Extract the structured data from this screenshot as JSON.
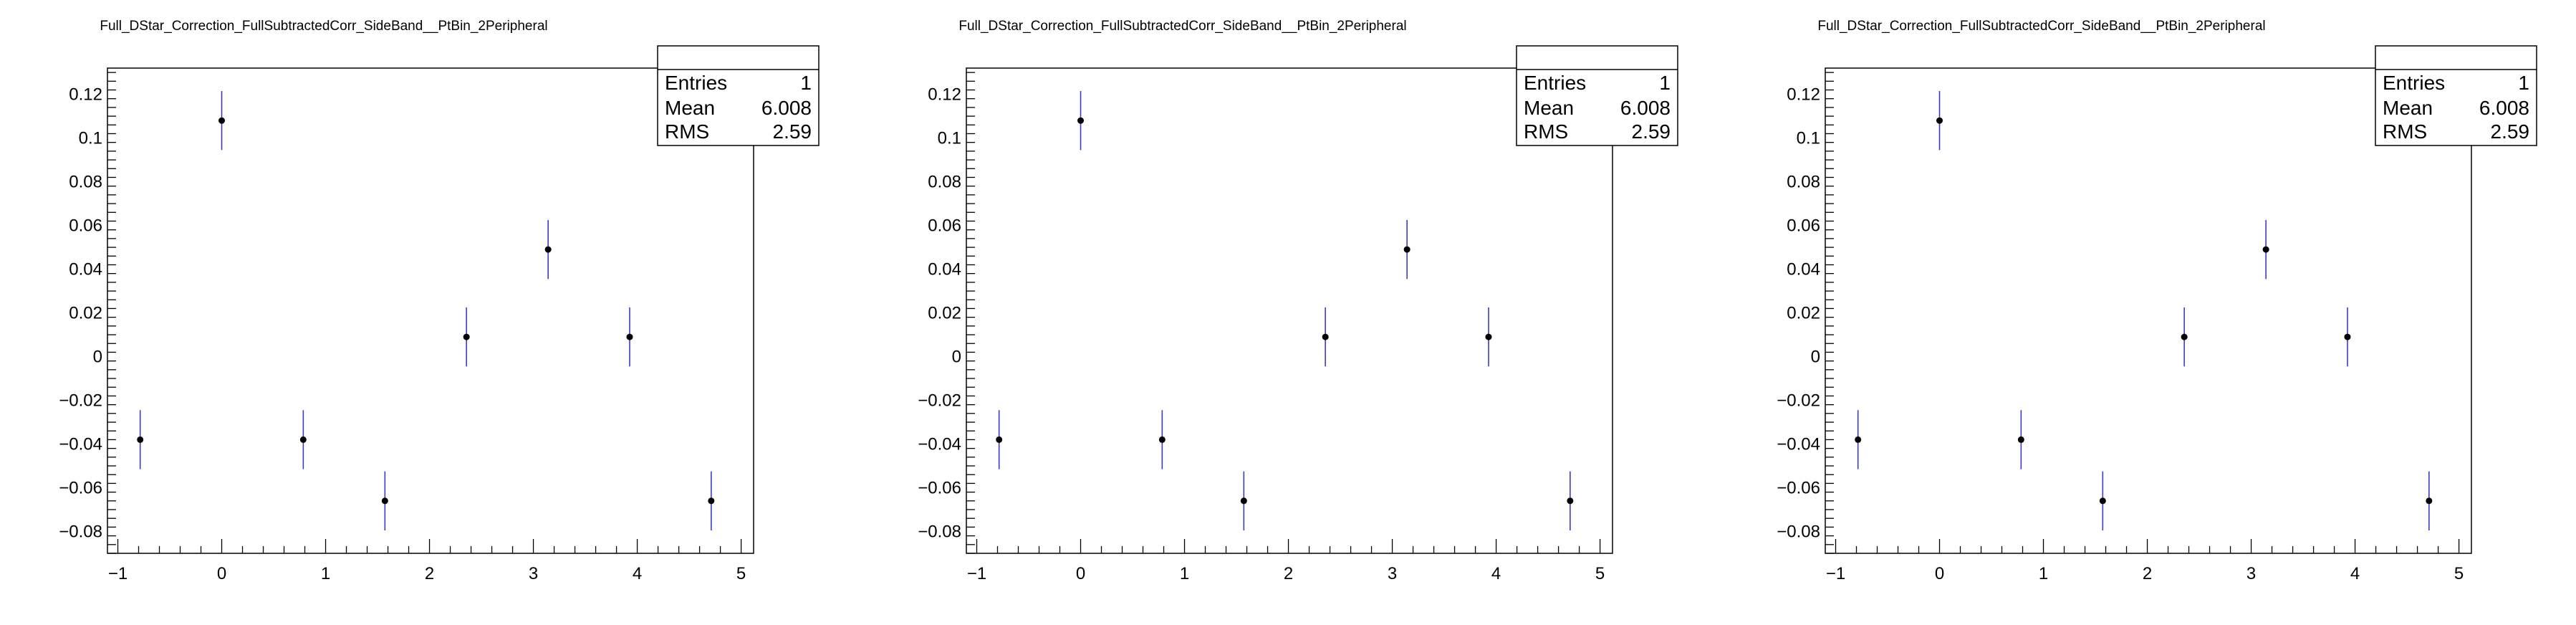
{
  "chart_data": [
    {
      "type": "scatter",
      "title": "Full_DStar_Correction_FullSubtractedCorr_SideBand__PtBin_2Peripheral",
      "xlim": [
        -1.1,
        5.12
      ],
      "ylim": [
        -0.09,
        0.132
      ],
      "x_ticks": [
        -1,
        0,
        1,
        2,
        3,
        4,
        5
      ],
      "x_tick_labels": [
        "−1",
        "0",
        "1",
        "2",
        "3",
        "4",
        "5"
      ],
      "y_ticks": [
        -0.08,
        -0.06,
        -0.04,
        -0.02,
        0,
        0.02,
        0.04,
        0.06,
        0.08,
        0.1,
        0.12
      ],
      "y_tick_labels": [
        "−0.08",
        "−0.06",
        "−0.04",
        "−0.02",
        "0",
        "0.02",
        "0.04",
        "0.06",
        "0.08",
        "0.1",
        "0.12"
      ],
      "grid": false,
      "series": [
        {
          "points": [
            {
              "x": -0.785,
              "y": -0.038,
              "err": 0.0135
            },
            {
              "x": 0.0,
              "y": 0.108,
              "err": 0.0135
            },
            {
              "x": 0.785,
              "y": -0.038,
              "err": 0.0135
            },
            {
              "x": 1.571,
              "y": -0.066,
              "err": 0.0135
            },
            {
              "x": 2.356,
              "y": 0.009,
              "err": 0.0135
            },
            {
              "x": 3.142,
              "y": 0.049,
              "err": 0.0135
            },
            {
              "x": 3.927,
              "y": 0.009,
              "err": 0.0135
            },
            {
              "x": 4.712,
              "y": -0.066,
              "err": 0.0135
            }
          ]
        }
      ],
      "stats": {
        "entries_label": "Entries",
        "entries": "1",
        "mean_label": "Mean",
        "mean": "6.008",
        "rms_label": "RMS",
        "rms": "2.59"
      }
    },
    {
      "type": "scatter",
      "title": "Full_DStar_Correction_FullSubtractedCorr_SideBand__PtBin_2Peripheral",
      "xlim": [
        -1.1,
        5.12
      ],
      "ylim": [
        -0.09,
        0.132
      ],
      "x_ticks": [
        -1,
        0,
        1,
        2,
        3,
        4,
        5
      ],
      "x_tick_labels": [
        "−1",
        "0",
        "1",
        "2",
        "3",
        "4",
        "5"
      ],
      "y_ticks": [
        -0.08,
        -0.06,
        -0.04,
        -0.02,
        0,
        0.02,
        0.04,
        0.06,
        0.08,
        0.1,
        0.12
      ],
      "y_tick_labels": [
        "−0.08",
        "−0.06",
        "−0.04",
        "−0.02",
        "0",
        "0.02",
        "0.04",
        "0.06",
        "0.08",
        "0.1",
        "0.12"
      ],
      "grid": false,
      "series": [
        {
          "points": [
            {
              "x": -0.785,
              "y": -0.038,
              "err": 0.0135
            },
            {
              "x": 0.0,
              "y": 0.108,
              "err": 0.0135
            },
            {
              "x": 0.785,
              "y": -0.038,
              "err": 0.0135
            },
            {
              "x": 1.571,
              "y": -0.066,
              "err": 0.0135
            },
            {
              "x": 2.356,
              "y": 0.009,
              "err": 0.0135
            },
            {
              "x": 3.142,
              "y": 0.049,
              "err": 0.0135
            },
            {
              "x": 3.927,
              "y": 0.009,
              "err": 0.0135
            },
            {
              "x": 4.712,
              "y": -0.066,
              "err": 0.0135
            }
          ]
        }
      ],
      "stats": {
        "entries_label": "Entries",
        "entries": "1",
        "mean_label": "Mean",
        "mean": "6.008",
        "rms_label": "RMS",
        "rms": "2.59"
      }
    },
    {
      "type": "scatter",
      "title": "Full_DStar_Correction_FullSubtractedCorr_SideBand__PtBin_2Peripheral",
      "xlim": [
        -1.1,
        5.12
      ],
      "ylim": [
        -0.09,
        0.132
      ],
      "x_ticks": [
        -1,
        0,
        1,
        2,
        3,
        4,
        5
      ],
      "x_tick_labels": [
        "−1",
        "0",
        "1",
        "2",
        "3",
        "4",
        "5"
      ],
      "y_ticks": [
        -0.08,
        -0.06,
        -0.04,
        -0.02,
        0,
        0.02,
        0.04,
        0.06,
        0.08,
        0.1,
        0.12
      ],
      "y_tick_labels": [
        "−0.08",
        "−0.06",
        "−0.04",
        "−0.02",
        "0",
        "0.02",
        "0.04",
        "0.06",
        "0.08",
        "0.1",
        "0.12"
      ],
      "grid": false,
      "series": [
        {
          "points": [
            {
              "x": -0.785,
              "y": -0.038,
              "err": 0.0135
            },
            {
              "x": 0.0,
              "y": 0.108,
              "err": 0.0135
            },
            {
              "x": 0.785,
              "y": -0.038,
              "err": 0.0135
            },
            {
              "x": 1.571,
              "y": -0.066,
              "err": 0.0135
            },
            {
              "x": 2.356,
              "y": 0.009,
              "err": 0.0135
            },
            {
              "x": 3.142,
              "y": 0.049,
              "err": 0.0135
            },
            {
              "x": 3.927,
              "y": 0.009,
              "err": 0.0135
            },
            {
              "x": 4.712,
              "y": -0.066,
              "err": 0.0135
            }
          ]
        }
      ],
      "stats": {
        "entries_label": "Entries",
        "entries": "1",
        "mean_label": "Mean",
        "mean": "6.008",
        "rms_label": "RMS",
        "rms": "2.59"
      }
    }
  ],
  "colors": {
    "marker": "#000000",
    "error_bar": "#3b3bc8",
    "frame": "#000000",
    "background": "#ffffff"
  }
}
